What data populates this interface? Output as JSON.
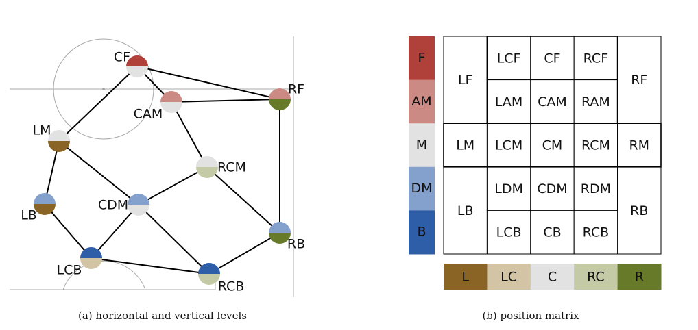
{
  "panel_a": {
    "caption": "(a)  horizontal and vertical levels",
    "vertical_colors": {
      "F": "#b0403a",
      "AM": "#cc8a84",
      "M": "#e2e2e2",
      "DM": "#84a0cc",
      "B": "#2f5ea8"
    },
    "horizontal_colors": {
      "L": "#8a6424",
      "LC": "#d2c4a4",
      "C": "#e2e2e2",
      "RC": "#c4c9a6",
      "R": "#667a2a"
    },
    "nodes": [
      {
        "id": "CF",
        "label": "CF",
        "vertical": "F",
        "horizontal": "C"
      },
      {
        "id": "CAM",
        "label": "CAM",
        "vertical": "AM",
        "horizontal": "C"
      },
      {
        "id": "RF",
        "label": "RF",
        "vertical": "AM",
        "horizontal": "R"
      },
      {
        "id": "LM",
        "label": "LM",
        "vertical": "M",
        "horizontal": "L"
      },
      {
        "id": "RCM",
        "label": "RCM",
        "vertical": "M",
        "horizontal": "RC"
      },
      {
        "id": "CDM",
        "label": "CDM",
        "vertical": "DM",
        "horizontal": "C"
      },
      {
        "id": "LB",
        "label": "LB",
        "vertical": "DM",
        "horizontal": "L"
      },
      {
        "id": "RB",
        "label": "RB",
        "vertical": "DM",
        "horizontal": "R"
      },
      {
        "id": "LCB",
        "label": "LCB",
        "vertical": "B",
        "horizontal": "LC"
      },
      {
        "id": "RCB",
        "label": "RCB",
        "vertical": "B",
        "horizontal": "RC"
      }
    ],
    "edges": [
      [
        "CF",
        "CAM"
      ],
      [
        "CF",
        "RF"
      ],
      [
        "CF",
        "LM"
      ],
      [
        "CAM",
        "RF"
      ],
      [
        "CAM",
        "RCM"
      ],
      [
        "RF",
        "RB"
      ],
      [
        "LM",
        "LB"
      ],
      [
        "LM",
        "CDM"
      ],
      [
        "RCM",
        "CDM"
      ],
      [
        "RCM",
        "RB"
      ],
      [
        "CDM",
        "LCB"
      ],
      [
        "CDM",
        "RCB"
      ],
      [
        "LB",
        "LCB"
      ],
      [
        "LCB",
        "RCB"
      ],
      [
        "RCB",
        "RB"
      ]
    ]
  },
  "panel_b": {
    "caption": "(b)  position matrix",
    "vertical_levels": [
      {
        "label": "F",
        "color": "#b0403a"
      },
      {
        "label": "AM",
        "color": "#cc8a84"
      },
      {
        "label": "M",
        "color": "#e2e2e2"
      },
      {
        "label": "DM",
        "color": "#84a0cc"
      },
      {
        "label": "B",
        "color": "#2f5ea8"
      }
    ],
    "horizontal_levels": [
      {
        "label": "L",
        "color": "#8a6424"
      },
      {
        "label": "LC",
        "color": "#d2c4a4"
      },
      {
        "label": "C",
        "color": "#e2e2e2"
      },
      {
        "label": "RC",
        "color": "#c4c9a6"
      },
      {
        "label": "R",
        "color": "#667a2a"
      }
    ],
    "cells": [
      {
        "label": "LF",
        "row": 0,
        "col": 0,
        "rowspan": 2,
        "colspan": 1
      },
      {
        "label": "LCF",
        "row": 0,
        "col": 1,
        "rowspan": 1,
        "colspan": 1
      },
      {
        "label": "CF",
        "row": 0,
        "col": 2,
        "rowspan": 1,
        "colspan": 1
      },
      {
        "label": "RCF",
        "row": 0,
        "col": 3,
        "rowspan": 1,
        "colspan": 1
      },
      {
        "label": "RF",
        "row": 0,
        "col": 4,
        "rowspan": 2,
        "colspan": 1
      },
      {
        "label": "LAM",
        "row": 1,
        "col": 1,
        "rowspan": 1,
        "colspan": 1
      },
      {
        "label": "CAM",
        "row": 1,
        "col": 2,
        "rowspan": 1,
        "colspan": 1
      },
      {
        "label": "RAM",
        "row": 1,
        "col": 3,
        "rowspan": 1,
        "colspan": 1
      },
      {
        "label": "LM",
        "row": 2,
        "col": 0,
        "rowspan": 1,
        "colspan": 1
      },
      {
        "label": "LCM",
        "row": 2,
        "col": 1,
        "rowspan": 1,
        "colspan": 1
      },
      {
        "label": "CM",
        "row": 2,
        "col": 2,
        "rowspan": 1,
        "colspan": 1
      },
      {
        "label": "RCM",
        "row": 2,
        "col": 3,
        "rowspan": 1,
        "colspan": 1
      },
      {
        "label": "RM",
        "row": 2,
        "col": 4,
        "rowspan": 1,
        "colspan": 1
      },
      {
        "label": "LB",
        "row": 3,
        "col": 0,
        "rowspan": 2,
        "colspan": 1
      },
      {
        "label": "LDM",
        "row": 3,
        "col": 1,
        "rowspan": 1,
        "colspan": 1
      },
      {
        "label": "CDM",
        "row": 3,
        "col": 2,
        "rowspan": 1,
        "colspan": 1
      },
      {
        "label": "RDM",
        "row": 3,
        "col": 3,
        "rowspan": 1,
        "colspan": 1
      },
      {
        "label": "RB",
        "row": 3,
        "col": 4,
        "rowspan": 2,
        "colspan": 1
      },
      {
        "label": "LCB",
        "row": 4,
        "col": 1,
        "rowspan": 1,
        "colspan": 1
      },
      {
        "label": "CB",
        "row": 4,
        "col": 2,
        "rowspan": 1,
        "colspan": 1
      },
      {
        "label": "RCB",
        "row": 4,
        "col": 3,
        "rowspan": 1,
        "colspan": 1
      }
    ]
  }
}
